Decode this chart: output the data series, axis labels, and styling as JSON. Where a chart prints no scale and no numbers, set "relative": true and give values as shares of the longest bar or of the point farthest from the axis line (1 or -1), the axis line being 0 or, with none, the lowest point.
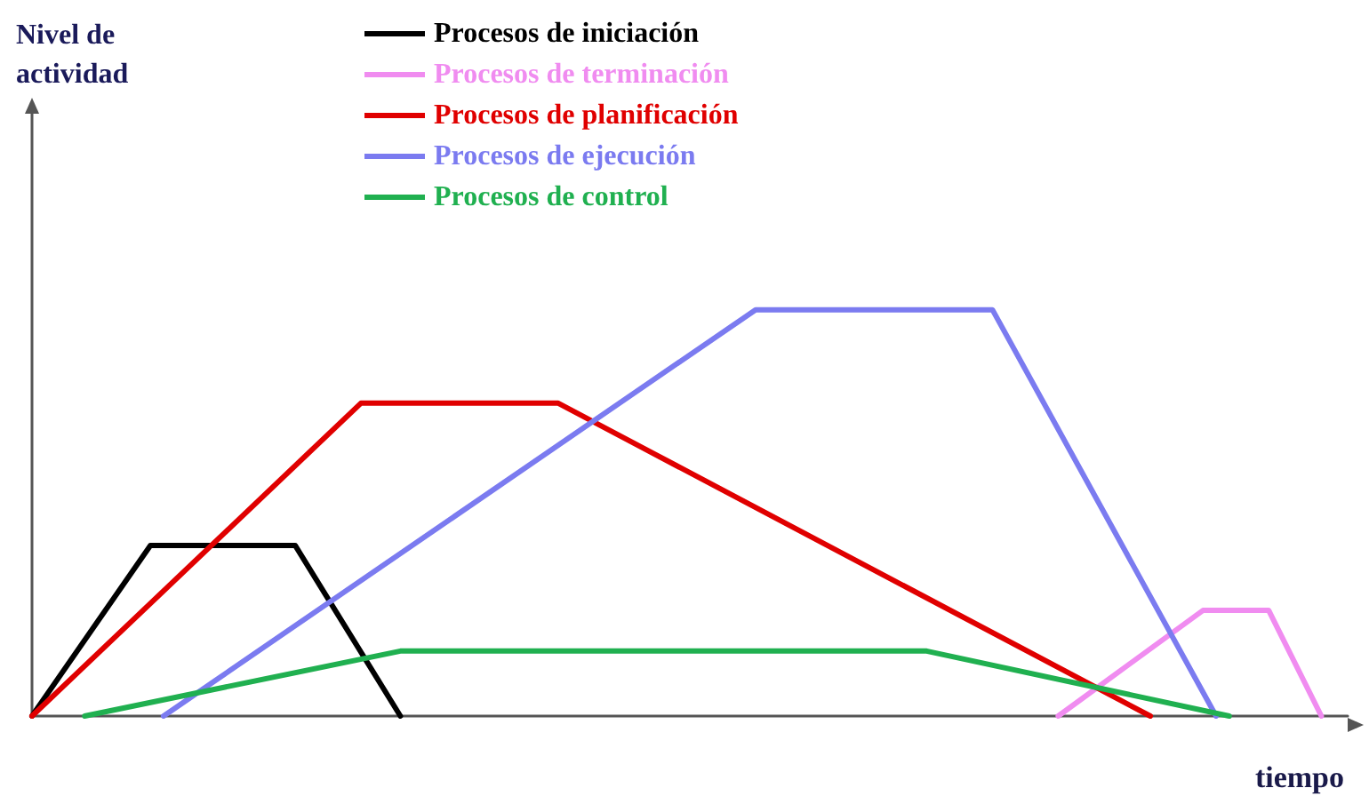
{
  "chart_data": {
    "type": "line",
    "relative": true,
    "xlabel": "tiempo",
    "annotations": [
      "Nivel de actividad"
    ],
    "legend": "top",
    "marker": "none",
    "line_style": "solid",
    "grid": false,
    "categories": [
      null,
      null,
      null,
      null,
      null,
      null,
      null,
      null,
      null,
      null,
      null,
      null,
      null,
      null,
      null,
      null,
      null,
      null,
      null,
      null,
      null,
      null,
      null,
      null,
      null,
      null,
      null,
      null,
      null,
      null,
      null,
      null,
      null,
      null,
      null,
      null,
      null,
      null,
      null,
      null,
      null,
      null,
      null,
      null,
      null,
      null,
      null,
      null,
      null,
      null,
      null,
      null,
      null,
      null,
      null,
      null,
      null,
      null,
      null,
      null,
      null,
      null,
      null,
      null,
      null,
      null,
      null,
      null,
      null,
      null,
      null,
      null,
      null,
      null,
      null,
      null,
      null,
      null,
      null,
      null,
      null,
      null,
      null,
      null,
      null,
      null,
      null,
      null,
      null,
      null,
      null,
      null,
      null,
      null,
      null,
      null,
      null,
      null,
      null,
      null,
      null
    ],
    "series": [
      {
        "name": "Procesos de iniciación",
        "color": "#000000",
        "values": [
          0,
          null,
          null,
          null,
          null,
          null,
          null,
          null,
          null,
          0.42,
          null,
          null,
          null,
          null,
          null,
          null,
          null,
          null,
          null,
          null,
          0.42,
          null,
          null,
          null,
          null,
          null,
          null,
          null,
          0,
          null,
          null,
          null,
          null,
          null,
          null,
          null,
          null,
          null,
          null,
          null,
          null,
          null,
          null,
          null,
          null,
          null,
          null,
          null,
          null,
          null,
          null,
          null,
          null,
          null,
          null,
          null,
          null,
          null,
          null,
          null,
          null,
          null,
          null,
          null,
          null,
          null,
          null,
          null,
          null,
          null,
          null,
          null,
          null,
          null,
          null,
          null,
          null,
          null,
          null,
          null,
          null,
          null,
          null,
          null,
          null,
          null,
          null,
          null,
          null,
          null,
          null,
          null,
          null,
          null,
          null,
          null,
          null,
          null,
          null,
          null,
          null
        ]
      },
      {
        "name": "Procesos de terminación",
        "color": "#f08cf0",
        "values": [
          null,
          null,
          null,
          null,
          null,
          null,
          null,
          null,
          null,
          null,
          null,
          null,
          null,
          null,
          null,
          null,
          null,
          null,
          null,
          null,
          null,
          null,
          null,
          null,
          null,
          null,
          null,
          null,
          null,
          null,
          null,
          null,
          null,
          null,
          null,
          null,
          null,
          null,
          null,
          null,
          null,
          null,
          null,
          null,
          null,
          null,
          null,
          null,
          null,
          null,
          null,
          null,
          null,
          null,
          null,
          null,
          null,
          null,
          null,
          null,
          null,
          null,
          null,
          null,
          null,
          null,
          null,
          null,
          null,
          null,
          null,
          null,
          null,
          null,
          null,
          null,
          null,
          null,
          0,
          null,
          null,
          null,
          null,
          null,
          null,
          null,
          null,
          null,
          null,
          0.26,
          null,
          null,
          null,
          null,
          0.26,
          null,
          null,
          null,
          0,
          null,
          null
        ]
      },
      {
        "name": "Procesos de planificación",
        "color": "#e00000",
        "values": [
          0,
          null,
          null,
          null,
          null,
          null,
          null,
          null,
          null,
          null,
          null,
          null,
          null,
          null,
          null,
          null,
          null,
          null,
          null,
          null,
          null,
          null,
          null,
          null,
          null,
          0.77,
          null,
          null,
          null,
          null,
          null,
          null,
          null,
          null,
          null,
          null,
          null,
          null,
          null,
          null,
          0.77,
          null,
          null,
          null,
          null,
          null,
          null,
          null,
          null,
          null,
          null,
          null,
          null,
          null,
          null,
          null,
          null,
          null,
          null,
          null,
          null,
          null,
          null,
          null,
          null,
          null,
          null,
          null,
          null,
          null,
          null,
          null,
          null,
          null,
          null,
          null,
          null,
          null,
          null,
          null,
          null,
          null,
          null,
          null,
          null,
          0,
          null,
          null,
          null,
          null,
          null,
          null,
          null,
          null,
          null,
          null,
          null,
          null,
          null,
          null,
          null
        ]
      },
      {
        "name": "Procesos de ejecución",
        "color": "#7b7bf0",
        "values": [
          null,
          null,
          null,
          null,
          null,
          null,
          null,
          null,
          null,
          null,
          0,
          null,
          null,
          null,
          null,
          null,
          null,
          null,
          null,
          null,
          null,
          null,
          null,
          null,
          null,
          null,
          null,
          null,
          null,
          null,
          null,
          null,
          null,
          null,
          null,
          null,
          null,
          null,
          null,
          null,
          null,
          null,
          null,
          null,
          null,
          null,
          null,
          null,
          null,
          null,
          null,
          null,
          null,
          null,
          null,
          1,
          null,
          null,
          null,
          null,
          null,
          null,
          null,
          null,
          null,
          null,
          null,
          null,
          null,
          null,
          null,
          null,
          null,
          1,
          null,
          null,
          null,
          null,
          null,
          null,
          null,
          null,
          null,
          null,
          null,
          null,
          null,
          null,
          null,
          null,
          0,
          null,
          null,
          null,
          null,
          null,
          null,
          null,
          null,
          null,
          null
        ]
      },
      {
        "name": "Procesos de control",
        "color": "#20b050",
        "values": [
          null,
          null,
          null,
          null,
          0,
          null,
          null,
          null,
          null,
          null,
          null,
          null,
          null,
          null,
          null,
          null,
          null,
          null,
          null,
          null,
          null,
          null,
          null,
          null,
          null,
          null,
          null,
          null,
          0.16,
          null,
          null,
          null,
          null,
          null,
          null,
          null,
          null,
          null,
          null,
          null,
          null,
          null,
          null,
          null,
          null,
          null,
          null,
          null,
          null,
          null,
          null,
          null,
          null,
          null,
          null,
          null,
          null,
          null,
          null,
          null,
          null,
          null,
          null,
          null,
          null,
          null,
          null,
          null,
          0.16,
          null,
          null,
          null,
          null,
          null,
          null,
          null,
          null,
          null,
          null,
          null,
          null,
          null,
          null,
          null,
          null,
          null,
          null,
          null,
          null,
          null,
          null,
          0,
          null,
          null,
          null,
          null,
          null,
          null,
          null,
          null,
          null
        ]
      }
    ]
  }
}
